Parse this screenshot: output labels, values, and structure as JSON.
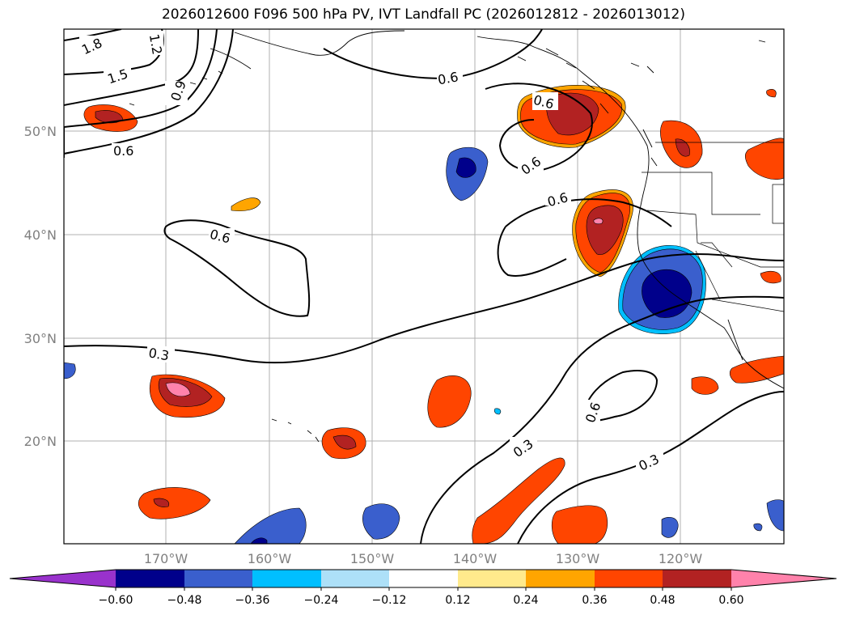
{
  "title": "2026012600 F096 500 hPa PV, IVT Landfall PC (2026012812 - 2026013012)",
  "map": {
    "lat_labels": [
      "50°N",
      "40°N",
      "30°N",
      "20°N"
    ],
    "lon_labels": [
      "170°W",
      "160°W",
      "150°W",
      "140°W",
      "130°W",
      "120°W"
    ],
    "contour_labels": [
      "1.8",
      "1.5",
      "1.2",
      "0.9",
      "0.6",
      "0.6",
      "0.6",
      "0.6",
      "0.6",
      "0.6",
      "0.3",
      "0.3",
      "0.6",
      "0.3"
    ]
  },
  "colorbar": {
    "labels": [
      "−0.60",
      "−0.48",
      "−0.36",
      "−0.24",
      "−0.12",
      "0.12",
      "0.24",
      "0.36",
      "0.48",
      "0.60"
    ],
    "colors": [
      "#9932CC",
      "#00008B",
      "#3A5FCD",
      "#00BFFF",
      "#ADE0F8",
      "#FFFFFF",
      "#FFEA8C",
      "#FFA500",
      "#FF4500",
      "#B22222",
      "#FF82AB"
    ]
  }
}
